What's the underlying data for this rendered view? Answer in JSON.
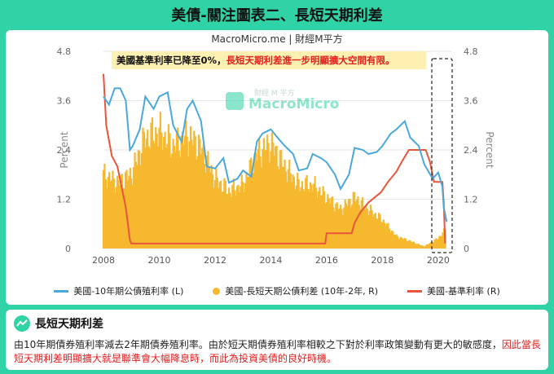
{
  "page_title": "美債-關注圖表二、長短天期利差",
  "chart_subtitle": "MacroMicro.me | 財經M平方",
  "watermark": {
    "top": "財經 M 平方",
    "brand": "MacroMicro"
  },
  "annotation": {
    "part1": "美國基準利率已降至0%，",
    "part2": "長短天期利差進一步明顯擴大空間有限。"
  },
  "note": {
    "heading": "長短天期利差",
    "body_plain": "由10年期債券殖利率減去2年期債券殖利率。由於短天期債券殖利率相較之下對於利率政策變動有更大的敏感度，",
    "body_red": "因此當長短天期利差明顯擴大就是聯準會大幅降息時，而此為投資美債的良好時機。"
  },
  "colors": {
    "accent": "#2fd3a5",
    "ten_year": "#4aa8db",
    "spread": "#f5b82e",
    "fed": "#e8553a"
  },
  "chart_data": {
    "type": "line",
    "xlim": [
      2008.0,
      2020.5
    ],
    "x_ticks": [
      "2008",
      "2010",
      "2012",
      "2014",
      "2016",
      "2018",
      "2020"
    ],
    "ylim_left": [
      0,
      4.8
    ],
    "ylim_right": [
      0,
      4.8
    ],
    "y_ticks": [
      "0",
      "1.2",
      "2.4",
      "3.6",
      "4.8"
    ],
    "ylabel_left": "Percent",
    "ylabel_right": "Percent",
    "series": [
      {
        "name": "美國-10年期公債殖利率 (L)",
        "kind": "line",
        "axis": "left",
        "x": [
          2008.0,
          2008.2,
          2008.4,
          2008.6,
          2008.8,
          2008.95,
          2009.05,
          2009.3,
          2009.5,
          2009.8,
          2010.0,
          2010.3,
          2010.5,
          2010.8,
          2011.0,
          2011.2,
          2011.5,
          2011.7,
          2012.0,
          2012.3,
          2012.5,
          2012.8,
          2013.0,
          2013.3,
          2013.5,
          2013.7,
          2014.0,
          2014.3,
          2014.5,
          2014.8,
          2015.0,
          2015.3,
          2015.5,
          2015.8,
          2016.0,
          2016.3,
          2016.5,
          2016.8,
          2017.0,
          2017.3,
          2017.5,
          2017.8,
          2018.0,
          2018.3,
          2018.5,
          2018.8,
          2019.0,
          2019.3,
          2019.5,
          2019.8,
          2020.0,
          2020.15,
          2020.2,
          2020.3
        ],
        "y": [
          3.7,
          3.5,
          3.9,
          3.9,
          3.6,
          2.4,
          2.5,
          2.9,
          3.7,
          3.4,
          3.7,
          3.8,
          3.0,
          2.6,
          3.4,
          3.6,
          3.1,
          2.0,
          1.95,
          2.2,
          1.6,
          1.7,
          1.9,
          1.75,
          2.6,
          2.8,
          2.9,
          2.65,
          2.5,
          2.3,
          1.9,
          1.95,
          2.3,
          2.2,
          2.1,
          1.8,
          1.45,
          1.8,
          2.45,
          2.4,
          2.3,
          2.35,
          2.5,
          2.8,
          2.9,
          3.1,
          2.7,
          2.5,
          2.05,
          1.7,
          1.85,
          1.5,
          1.0,
          0.65
        ]
      },
      {
        "name": "美國-長短天期公債利差 (10年-2年, R)",
        "kind": "bar",
        "axis": "right",
        "x": [
          2008.0,
          2008.5,
          2009.0,
          2009.5,
          2010.0,
          2010.5,
          2011.0,
          2011.5,
          2012.0,
          2012.5,
          2013.0,
          2013.5,
          2014.0,
          2014.5,
          2015.0,
          2015.5,
          2016.0,
          2016.5,
          2017.0,
          2017.5,
          2018.0,
          2018.5,
          2019.0,
          2019.5,
          2020.0,
          2020.25
        ],
        "y": [
          1.8,
          1.6,
          1.8,
          2.7,
          2.85,
          2.5,
          2.75,
          2.45,
          1.7,
          1.4,
          1.55,
          2.3,
          2.55,
          2.0,
          1.55,
          1.55,
          1.25,
          0.95,
          1.25,
          0.95,
          0.7,
          0.3,
          0.18,
          0.05,
          0.25,
          0.45
        ]
      },
      {
        "name": "美國-基準利率 (R)",
        "kind": "line",
        "axis": "right",
        "x": [
          2008.0,
          2008.1,
          2008.3,
          2008.5,
          2008.8,
          2008.95,
          2009.0,
          2015.95,
          2016.0,
          2016.9,
          2017.0,
          2017.2,
          2017.5,
          2017.95,
          2018.2,
          2018.5,
          2018.7,
          2018.95,
          2019.55,
          2019.7,
          2019.85,
          2020.15,
          2020.2,
          2020.25
        ],
        "y": [
          4.25,
          3.0,
          2.25,
          2.0,
          1.0,
          0.2,
          0.12,
          0.12,
          0.37,
          0.37,
          0.62,
          0.87,
          1.12,
          1.37,
          1.62,
          1.87,
          2.12,
          2.4,
          2.4,
          2.12,
          1.62,
          1.62,
          1.12,
          0.12
        ]
      }
    ]
  }
}
